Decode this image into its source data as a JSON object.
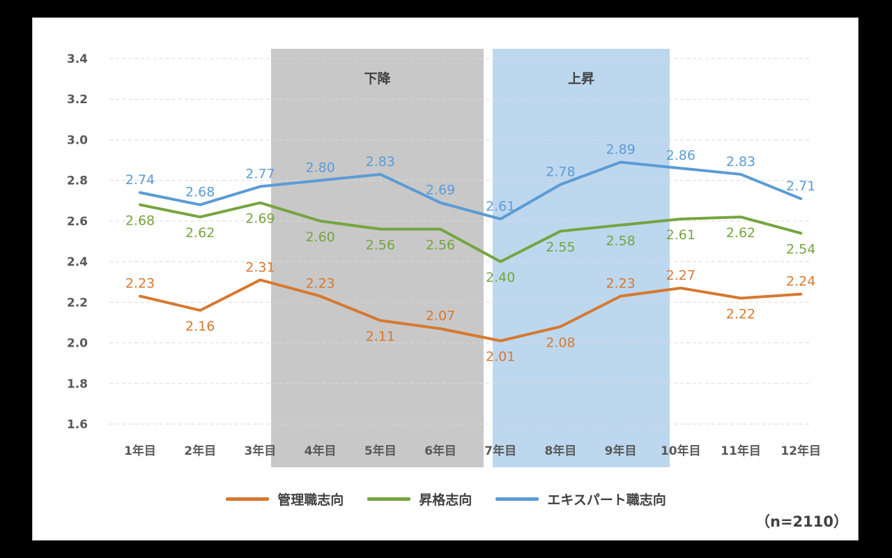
{
  "chart_data": {
    "type": "line",
    "categories": [
      "1年目",
      "2年目",
      "3年目",
      "4年目",
      "5年目",
      "6年目",
      "7年目",
      "8年目",
      "9年目",
      "10年目",
      "11年目",
      "12年目"
    ],
    "series": [
      {
        "name": "管理職志向",
        "color": "#D6782F",
        "values": [
          2.23,
          2.16,
          2.31,
          2.23,
          2.11,
          2.07,
          2.01,
          2.08,
          2.23,
          2.27,
          2.22,
          2.24
        ]
      },
      {
        "name": "昇格志向",
        "color": "#76A440",
        "values": [
          2.68,
          2.62,
          2.69,
          2.6,
          2.56,
          2.56,
          2.4,
          2.55,
          2.58,
          2.61,
          2.62,
          2.54
        ]
      },
      {
        "name": "エキスパート職志向",
        "color": "#5B9BD5",
        "values": [
          2.74,
          2.68,
          2.77,
          2.8,
          2.83,
          2.69,
          2.61,
          2.78,
          2.89,
          2.86,
          2.83,
          2.71
        ]
      }
    ],
    "yticks": [
      "1.6",
      "1.8",
      "2.0",
      "2.2",
      "2.4",
      "2.6",
      "2.8",
      "3.0",
      "3.2",
      "3.4"
    ],
    "ylim": [
      1.6,
      3.4
    ],
    "grid": true,
    "legend": "bottom",
    "bands": [
      {
        "label": "下降",
        "from": "3年目",
        "to": "7年目",
        "color": "#C8C8C8"
      },
      {
        "label": "上昇",
        "from": "7年目",
        "to": "10年目",
        "color": "#BDD7EE"
      }
    ],
    "note": "（n=2110）"
  }
}
